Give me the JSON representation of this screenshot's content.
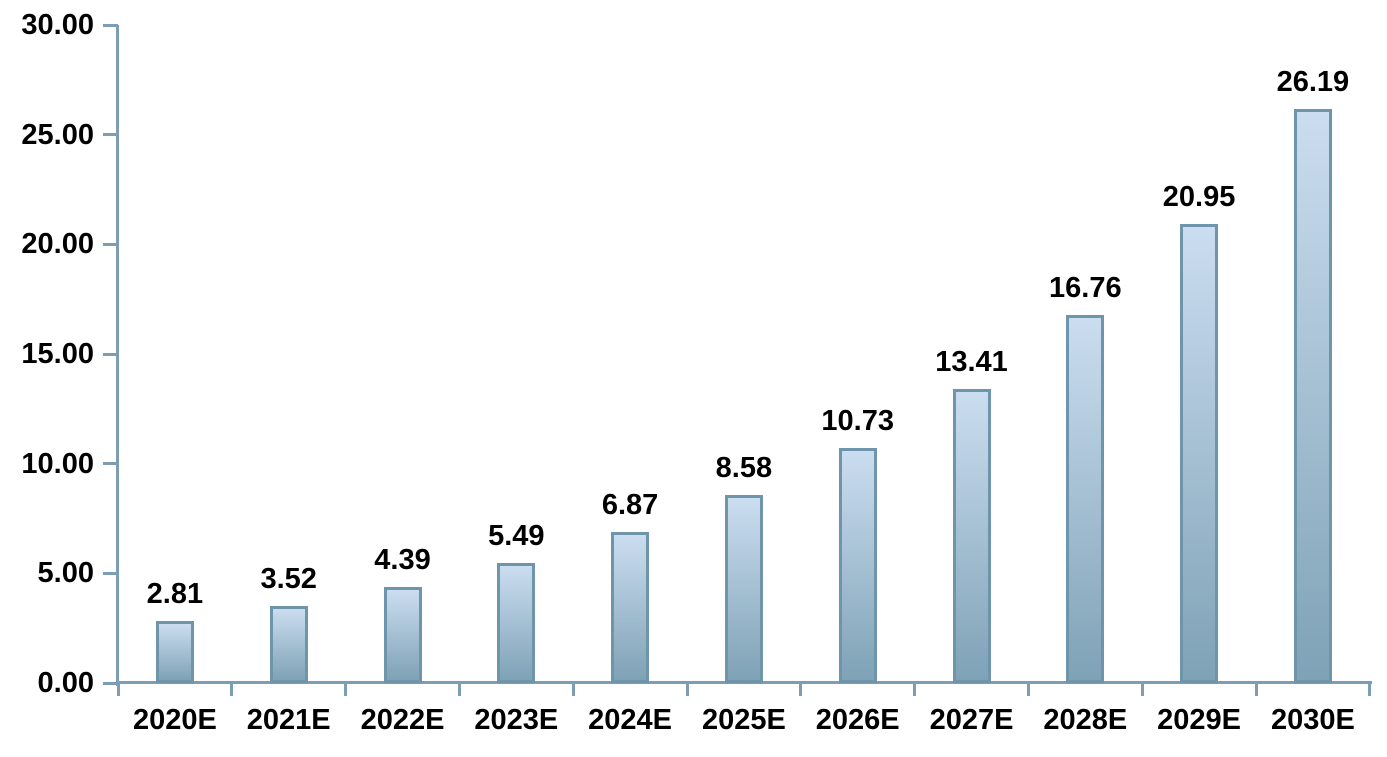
{
  "chart_data": {
    "type": "bar",
    "title": "",
    "xlabel": "",
    "ylabel": "",
    "categories": [
      "2020E",
      "2021E",
      "2022E",
      "2023E",
      "2024E",
      "2025E",
      "2026E",
      "2027E",
      "2028E",
      "2029E",
      "2030E"
    ],
    "values": [
      2.81,
      3.52,
      4.39,
      5.49,
      6.87,
      8.58,
      10.73,
      13.41,
      16.76,
      20.95,
      26.19
    ],
    "data_labels": [
      "2.81",
      "3.52",
      "4.39",
      "5.49",
      "6.87",
      "8.58",
      "10.73",
      "13.41",
      "16.76",
      "20.95",
      "26.19"
    ],
    "ylim": [
      0,
      30
    ],
    "ytick_values": [
      0,
      5,
      10,
      15,
      20,
      25,
      30
    ],
    "ytick_labels": [
      "0.00",
      "5.00",
      "10.00",
      "15.00",
      "20.00",
      "25.00",
      "30.00"
    ],
    "grid": false,
    "legend_position": "none"
  },
  "style": {
    "background": "#ffffff",
    "axis_color": "#7c9db3",
    "bar_border_color": "#6f95aa",
    "bar_gradient_top": "#cbddf0",
    "bar_gradient_bottom": "#7fa2b6",
    "text_color": "#000000"
  }
}
